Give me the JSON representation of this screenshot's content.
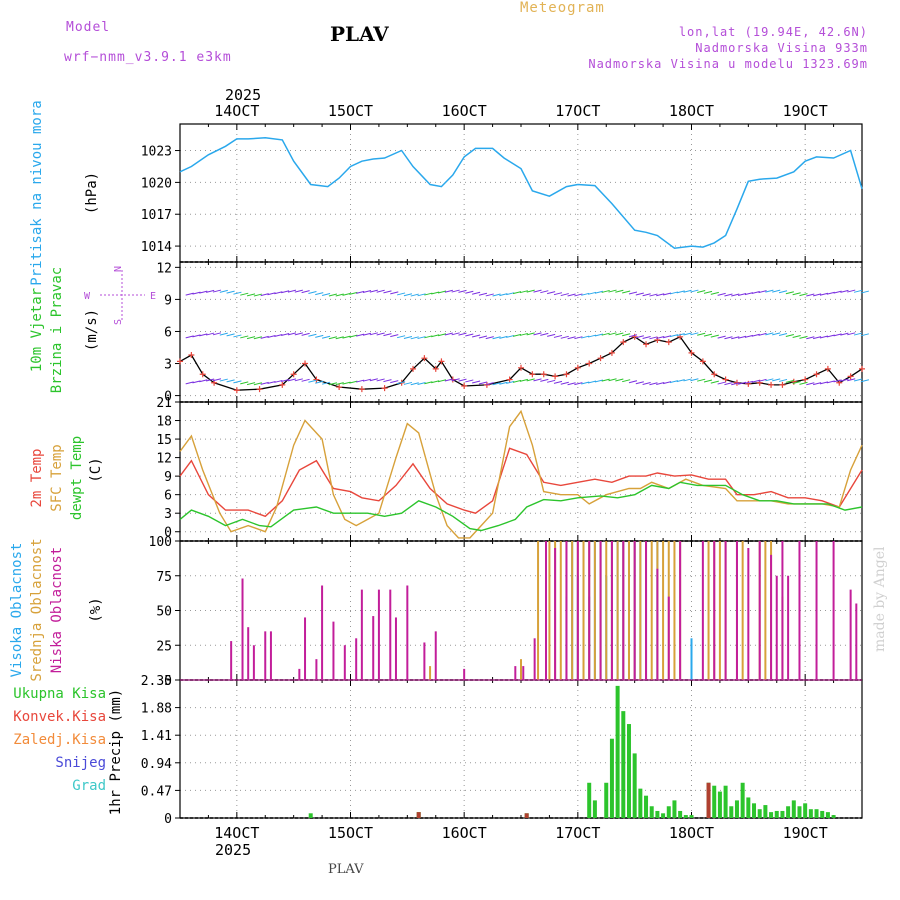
{
  "header": {
    "model_label": "Model",
    "model_name": "wrf−nmm_v3.9.1  e3km",
    "station": "PLAV",
    "meteogram": "Meteogram",
    "lonlat": "lon,lat (19.94E, 42.6N)",
    "altitude": "Nadmorska Visina 933m",
    "model_altitude": "Nadmorska Visina u modelu 1323.69m",
    "footer_station": "PLAV",
    "watermark": "made by Angel"
  },
  "time_axis": {
    "year": "2025",
    "start_day": 13.5,
    "end_day": 19.5,
    "day_ticks": [
      14,
      15,
      16,
      17,
      18,
      19
    ],
    "tick_labels": [
      "14OCT",
      "15OCT",
      "16OCT",
      "17OCT",
      "18OCT",
      "19OCT"
    ]
  },
  "chart_data": [
    {
      "type": "line",
      "id": "pressure",
      "title": "Pritisak na nivou mora",
      "ylabel": "(hPa)",
      "ylim": [
        1012.5,
        1025.5
      ],
      "yticks": [
        1014,
        1017,
        1020,
        1023
      ],
      "series": [
        {
          "name": "Pritisak",
          "color": "#2aa8ec",
          "x": [
            13.5,
            13.6,
            13.75,
            13.9,
            14.0,
            14.1,
            14.25,
            14.4,
            14.5,
            14.65,
            14.8,
            14.9,
            15.0,
            15.1,
            15.2,
            15.3,
            15.45,
            15.55,
            15.7,
            15.8,
            15.9,
            16.0,
            16.1,
            16.25,
            16.35,
            16.5,
            16.6,
            16.75,
            16.9,
            17.0,
            17.15,
            17.3,
            17.5,
            17.6,
            17.7,
            17.85,
            18.0,
            18.1,
            18.2,
            18.3,
            18.4,
            18.5,
            18.6,
            18.75,
            18.9,
            19.0,
            19.1,
            19.25,
            19.4,
            19.5
          ],
          "values": [
            1021,
            1021.5,
            1022.6,
            1023.4,
            1024.1,
            1024.1,
            1024.2,
            1024,
            1022,
            1019.8,
            1019.6,
            1020.4,
            1021.5,
            1022,
            1022.2,
            1022.3,
            1023,
            1021.5,
            1019.8,
            1019.6,
            1020.7,
            1022.4,
            1023.2,
            1023.2,
            1022.3,
            1021.3,
            1019.2,
            1018.7,
            1019.6,
            1019.8,
            1019.7,
            1018,
            1015.5,
            1015.3,
            1015,
            1013.8,
            1014,
            1013.9,
            1014.3,
            1015,
            1017.5,
            1020.1,
            1020.3,
            1020.4,
            1021,
            1022,
            1022.4,
            1022.3,
            1023,
            1019.4
          ]
        }
      ]
    },
    {
      "type": "line",
      "id": "wind",
      "title": "10m Vjetar Brzina i Pravac",
      "ylabel": "(m/s)",
      "compass": [
        "N",
        "E",
        "S",
        "W"
      ],
      "ylim": [
        -0.6,
        12.5
      ],
      "yticks": [
        0,
        3,
        6,
        9,
        12
      ],
      "series": [
        {
          "name": "Brzina",
          "color": "#000000",
          "x": [
            13.5,
            13.6,
            13.7,
            13.8,
            14.0,
            14.2,
            14.4,
            14.5,
            14.6,
            14.7,
            14.9,
            15.1,
            15.3,
            15.45,
            15.55,
            15.65,
            15.75,
            15.8,
            15.9,
            16.0,
            16.2,
            16.4,
            16.5,
            16.6,
            16.7,
            16.8,
            16.9,
            17.0,
            17.1,
            17.2,
            17.3,
            17.4,
            17.5,
            17.6,
            17.7,
            17.8,
            17.9,
            18.0,
            18.1,
            18.2,
            18.3,
            18.4,
            18.5,
            18.6,
            18.7,
            18.8,
            18.9,
            19.0,
            19.1,
            19.2,
            19.3,
            19.4,
            19.5
          ],
          "values": [
            3.2,
            3.8,
            2,
            1.2,
            0.5,
            0.6,
            1,
            2,
            3,
            1.5,
            0.8,
            0.6,
            0.7,
            1.2,
            2.5,
            3.5,
            2.5,
            3.2,
            1.5,
            0.9,
            1,
            1.5,
            2.6,
            2,
            2,
            1.8,
            2,
            2.6,
            3,
            3.5,
            4,
            5,
            5.5,
            4.8,
            5.2,
            5,
            5.5,
            4,
            3.2,
            2,
            1.5,
            1.2,
            1.1,
            1.2,
            1,
            1,
            1.3,
            1.5,
            2,
            2.5,
            1.2,
            1.8,
            2.5
          ]
        }
      ]
    },
    {
      "type": "line",
      "id": "temperature",
      "title": "2m Temp / SFC Temp / dewpt Temp",
      "ylabel": "(C)",
      "ylim": [
        -1.5,
        21
      ],
      "yticks": [
        0,
        3,
        6,
        9,
        12,
        15,
        18,
        21
      ],
      "series": [
        {
          "name": "2m Temp",
          "color": "#e8473c",
          "x": [
            13.5,
            13.6,
            13.75,
            13.9,
            14.1,
            14.25,
            14.4,
            14.55,
            14.7,
            14.85,
            15.0,
            15.1,
            15.25,
            15.4,
            15.55,
            15.7,
            15.85,
            16.0,
            16.1,
            16.25,
            16.4,
            16.55,
            16.7,
            16.85,
            17.0,
            17.15,
            17.3,
            17.45,
            17.6,
            17.7,
            17.85,
            18.0,
            18.15,
            18.3,
            18.4,
            18.55,
            18.7,
            18.85,
            19.0,
            19.15,
            19.3,
            19.5
          ],
          "values": [
            9,
            11.5,
            6,
            3.5,
            3.5,
            2.5,
            5,
            10,
            11.5,
            7,
            6.5,
            5.5,
            5,
            7.5,
            11,
            7,
            4.5,
            3.5,
            3,
            5,
            13.5,
            12.5,
            8,
            7.5,
            8,
            8.5,
            8,
            9,
            9,
            9.5,
            9,
            9.2,
            8.5,
            8.5,
            6,
            6,
            6.5,
            5.5,
            5.5,
            5,
            4,
            10
          ]
        },
        {
          "name": "SFC Temp",
          "color": "#d7a13a",
          "x": [
            13.5,
            13.6,
            13.7,
            13.85,
            13.95,
            14.1,
            14.25,
            14.35,
            14.5,
            14.6,
            14.75,
            14.85,
            14.95,
            15.05,
            15.15,
            15.25,
            15.4,
            15.5,
            15.6,
            15.75,
            15.85,
            15.95,
            16.05,
            16.15,
            16.25,
            16.4,
            16.5,
            16.6,
            16.7,
            16.85,
            17.0,
            17.1,
            17.25,
            17.45,
            17.55,
            17.65,
            17.8,
            17.95,
            18.1,
            18.3,
            18.4,
            18.55,
            18.7,
            18.85,
            19.0,
            19.15,
            19.3,
            19.4,
            19.5
          ],
          "values": [
            13,
            15.5,
            10,
            3,
            0,
            1,
            0,
            4,
            14,
            18,
            15,
            6,
            2,
            1,
            2,
            3,
            12,
            17.5,
            16,
            6,
            1,
            -1,
            -1,
            1,
            3,
            17,
            19.5,
            14,
            6.5,
            6,
            6,
            4.5,
            6,
            7,
            7,
            8,
            7,
            8.5,
            7.5,
            7,
            5,
            5,
            5,
            4.5,
            4.5,
            4.5,
            4,
            10,
            14
          ]
        },
        {
          "name": "dewpt Temp",
          "color": "#2cc42c",
          "x": [
            13.5,
            13.6,
            13.75,
            13.9,
            14.05,
            14.2,
            14.3,
            14.5,
            14.7,
            14.85,
            15.0,
            15.15,
            15.3,
            15.45,
            15.6,
            15.75,
            15.9,
            16.05,
            16.15,
            16.3,
            16.45,
            16.55,
            16.7,
            16.85,
            17.0,
            17.2,
            17.35,
            17.5,
            17.65,
            17.8,
            17.9,
            18.05,
            18.2,
            18.3,
            18.45,
            18.6,
            18.75,
            18.9,
            19.05,
            19.2,
            19.35,
            19.5
          ],
          "values": [
            2,
            3.5,
            2.5,
            1,
            2,
            1,
            0.8,
            3.5,
            4,
            3,
            3,
            3,
            2.5,
            3,
            5,
            4,
            2.5,
            0.5,
            0.2,
            1,
            2,
            4,
            5.2,
            5,
            5.5,
            5.8,
            5.5,
            6,
            7.5,
            7,
            8,
            7.5,
            7.5,
            7.5,
            6,
            5,
            5,
            4.5,
            4.5,
            4.5,
            3.5,
            4
          ]
        }
      ]
    },
    {
      "type": "bar",
      "id": "cloud",
      "title": "Visoka Oblacnost / Srednja Oblacnost / Niska Oblacnost",
      "ylabel": "(%)",
      "ylim": [
        0,
        100
      ],
      "yticks": [
        0,
        25,
        50,
        75,
        100
      ],
      "series": [
        {
          "name": "Visoka Oblacnost",
          "color": "#2aa8ec",
          "x": [
            16.9,
            16.95,
            17.0,
            17.05,
            17.1,
            17.15,
            17.2,
            17.25,
            17.3,
            17.35,
            17.4,
            17.45,
            17.5,
            17.55,
            17.6,
            17.7,
            18.0
          ],
          "values": [
            60,
            100,
            75,
            100,
            60,
            100,
            100,
            75,
            100,
            100,
            100,
            100,
            100,
            100,
            65,
            100,
            30
          ]
        },
        {
          "name": "Srednja Oblacnost",
          "color": "#d7a13a",
          "x": [
            15.7,
            16.5,
            16.65,
            16.75,
            16.8,
            16.85,
            16.9,
            16.95,
            17.0,
            17.05,
            17.1,
            17.15,
            17.2,
            17.25,
            17.3,
            17.35,
            17.4,
            17.45,
            17.5,
            17.55,
            17.6,
            17.65,
            17.7,
            17.75,
            17.8,
            17.85,
            17.9,
            18.15,
            18.2,
            18.25,
            18.3,
            18.4,
            18.45,
            18.6,
            18.65,
            18.7,
            18.8
          ],
          "values": [
            10,
            15,
            100,
            100,
            100,
            100,
            100,
            100,
            100,
            100,
            100,
            100,
            100,
            100,
            100,
            100,
            100,
            100,
            100,
            100,
            100,
            100,
            100,
            100,
            100,
            100,
            100,
            100,
            100,
            100,
            100,
            100,
            100,
            100,
            100,
            100,
            60
          ]
        },
        {
          "name": "Niska Oblacnost",
          "color": "#c21e9a",
          "x": [
            13.95,
            14.05,
            14.1,
            14.15,
            14.25,
            14.3,
            14.55,
            14.6,
            14.7,
            14.75,
            14.85,
            14.95,
            15.05,
            15.1,
            15.2,
            15.25,
            15.35,
            15.4,
            15.5,
            15.65,
            15.75,
            16.0,
            16.45,
            16.52,
            16.62,
            16.72,
            16.8,
            16.9,
            17.0,
            17.1,
            17.2,
            17.3,
            17.4,
            17.5,
            17.6,
            17.7,
            17.8,
            17.9,
            18.1,
            18.2,
            18.3,
            18.4,
            18.5,
            18.6,
            18.7,
            18.75,
            18.8,
            18.85,
            18.95,
            19.1,
            19.25,
            19.4,
            19.45
          ],
          "values": [
            28,
            73,
            38,
            25,
            35,
            35,
            8,
            45,
            15,
            68,
            42,
            25,
            30,
            65,
            46,
            65,
            65,
            45,
            68,
            27,
            35,
            8,
            10,
            10,
            30,
            100,
            95,
            100,
            100,
            100,
            100,
            100,
            100,
            100,
            100,
            80,
            60,
            100,
            100,
            100,
            100,
            100,
            95,
            100,
            90,
            75,
            100,
            75,
            100,
            100,
            100,
            65,
            55
          ]
        }
      ]
    },
    {
      "type": "bar",
      "id": "precip",
      "title": "1hr Precip",
      "ylabel": "(mm)",
      "ylim": [
        0,
        2.35
      ],
      "yticks": [
        0,
        0.47,
        0.94,
        1.41,
        1.88,
        2.35
      ],
      "legend": [
        "Ukupna Kisa",
        "Konvek.Kisa",
        "Zaledj.Kisa",
        "Snijeg",
        "Grad"
      ],
      "legend_colors": [
        "#2cc42c",
        "#e8473c",
        "#f28b3a",
        "#4a4ad8",
        "#3ec8c8"
      ],
      "series": [
        {
          "name": "Ukupna Kisa",
          "color": "#2cc42c",
          "x": [
            14.65,
            15.6,
            16.55,
            17.1,
            17.15,
            17.25,
            17.3,
            17.35,
            17.4,
            17.45,
            17.5,
            17.55,
            17.6,
            17.65,
            17.7,
            17.75,
            17.8,
            17.85,
            17.9,
            17.95,
            18.0,
            18.15,
            18.2,
            18.25,
            18.3,
            18.35,
            18.4,
            18.45,
            18.5,
            18.55,
            18.6,
            18.65,
            18.7,
            18.75,
            18.8,
            18.85,
            18.9,
            18.95,
            19.0,
            19.05,
            19.1,
            19.15,
            19.2,
            19.25
          ],
          "values": [
            0.08,
            0.1,
            0.08,
            0.6,
            0.3,
            0.6,
            1.35,
            2.25,
            1.82,
            1.6,
            1.1,
            0.5,
            0.38,
            0.2,
            0.12,
            0.08,
            0.2,
            0.3,
            0.12,
            0.05,
            0.05,
            0.6,
            0.55,
            0.45,
            0.55,
            0.2,
            0.3,
            0.6,
            0.35,
            0.25,
            0.15,
            0.22,
            0.1,
            0.12,
            0.12,
            0.2,
            0.3,
            0.2,
            0.25,
            0.15,
            0.15,
            0.12,
            0.1,
            0.05
          ]
        },
        {
          "name": "Konvek.Kisa",
          "color": "#b04030",
          "x": [
            15.6,
            16.55,
            18.15
          ],
          "values": [
            0.1,
            0.08,
            0.6
          ]
        }
      ]
    }
  ]
}
